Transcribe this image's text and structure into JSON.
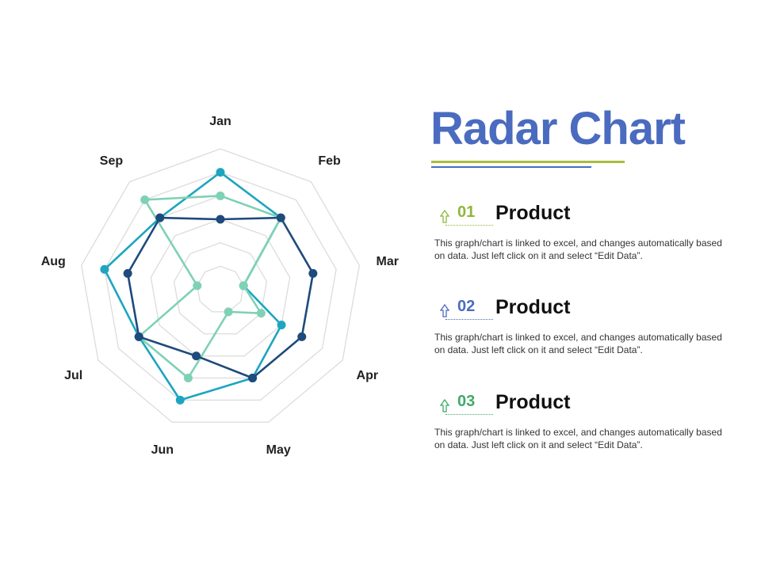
{
  "slide": {
    "title": "Radar Chart",
    "rule_colors": [
      "#a9bc3c",
      "#4a6bbf"
    ]
  },
  "items": [
    {
      "number": "01",
      "heading": "Product",
      "description": "This graph/chart is linked to excel, and changes automatically based on data. Just left click on it and select “Edit Data”.",
      "accent_color": "#8fb63c",
      "icon": "up-arrow-icon"
    },
    {
      "number": "02",
      "heading": "Product",
      "description": "This graph/chart is linked to excel, and changes automatically based on data. Just left click on it and select “Edit Data”.",
      "accent_color": "#4a6bbf",
      "icon": "up-arrow-icon"
    },
    {
      "number": "03",
      "heading": "Product",
      "description": "This graph/chart is linked to excel, and changes automatically based on data. Just left click on it and select “Edit Data”.",
      "accent_color": "#3faa6a",
      "icon": "up-arrow-icon"
    }
  ],
  "chart_data": {
    "type": "radar",
    "categories": [
      "Jan",
      "Feb",
      "Mar",
      "Apr",
      "May",
      "Jun",
      "Jul",
      "Aug",
      "Sep"
    ],
    "rlim": [
      0,
      6
    ],
    "rings": 6,
    "grid": true,
    "legend": "none",
    "series": [
      {
        "color": "#1ea5c0",
        "values": [
          5,
          4,
          1,
          3,
          4,
          5,
          4,
          5,
          4
        ]
      },
      {
        "color": "#7fd1b5",
        "values": [
          4,
          4,
          1,
          2,
          1,
          4,
          4,
          1,
          5
        ]
      },
      {
        "color": "#1f4a7c",
        "values": [
          3,
          4,
          4,
          4,
          4,
          3,
          4,
          4,
          4
        ]
      }
    ]
  }
}
